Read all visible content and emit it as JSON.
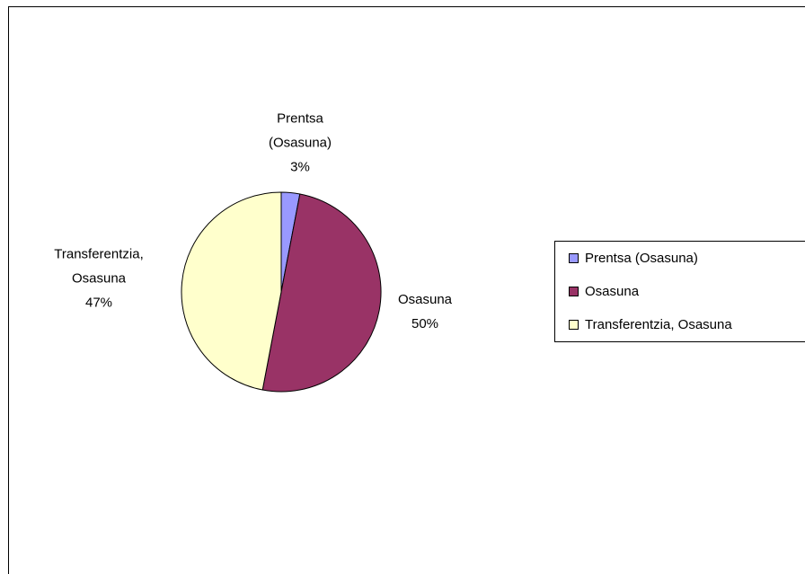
{
  "chart_data": {
    "type": "pie",
    "categories": [
      "Prentsa (Osasuna)",
      "Osasuna",
      "Transferentzia, Osasuna"
    ],
    "values": [
      3,
      50,
      47
    ],
    "value_labels": [
      "3%",
      "50%",
      "47%"
    ],
    "colors": [
      "#9999ff",
      "#993366",
      "#ffffcc"
    ],
    "legend": "right"
  }
}
